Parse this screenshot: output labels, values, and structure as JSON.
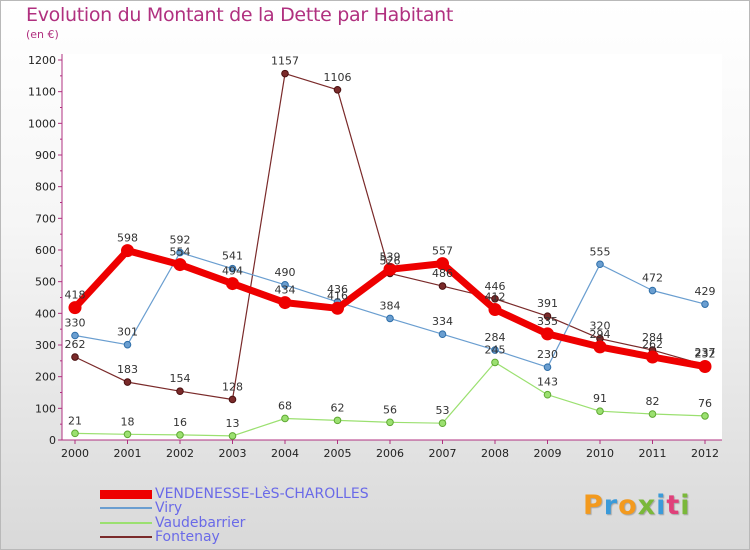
{
  "title": "Evolution du Montant de la Dette par Habitant",
  "subtitle": "(en €)",
  "logo": {
    "letters": [
      "P",
      "r",
      "o",
      "x",
      "i",
      "t",
      "i"
    ],
    "colors": [
      "#f39a1e",
      "#3a9ad9",
      "#f39a1e",
      "#7ab83a",
      "#3a9ad9",
      "#e0407a",
      "#7ab83a"
    ]
  },
  "chart_data": {
    "type": "line",
    "title": "Evolution du Montant de la Dette par Habitant",
    "ylabel": "(en €)",
    "xlabel": "",
    "x": [
      "2000",
      "2001",
      "2002",
      "2003",
      "2004",
      "2005",
      "2006",
      "2007",
      "2008",
      "2009",
      "2010",
      "2011",
      "2012"
    ],
    "ylim": [
      0,
      1200
    ],
    "yticks": [
      0,
      100,
      200,
      300,
      400,
      500,
      600,
      700,
      800,
      900,
      1000,
      1100,
      1200
    ],
    "grid": false,
    "legend_position": "bottom-left",
    "series": [
      {
        "name": "VENDENESSE-LèS-CHAROLLES",
        "color": "#ee0000",
        "values": [
          418,
          598,
          554,
          494,
          434,
          416,
          539,
          557,
          412,
          335,
          294,
          262,
          232
        ]
      },
      {
        "name": "Viry",
        "color": "#6a9ed0",
        "values": [
          330,
          301,
          592,
          541,
          490,
          436,
          384,
          334,
          284,
          230,
          555,
          472,
          429
        ]
      },
      {
        "name": "Vaudebarrier",
        "color": "#9be070",
        "values": [
          21,
          18,
          16,
          13,
          68,
          62,
          56,
          53,
          245,
          143,
          91,
          82,
          76
        ]
      },
      {
        "name": "Fontenay",
        "color": "#7a2a2a",
        "values": [
          262,
          183,
          154,
          128,
          1157,
          1106,
          526,
          486,
          446,
          391,
          320,
          284,
          237
        ]
      }
    ]
  }
}
